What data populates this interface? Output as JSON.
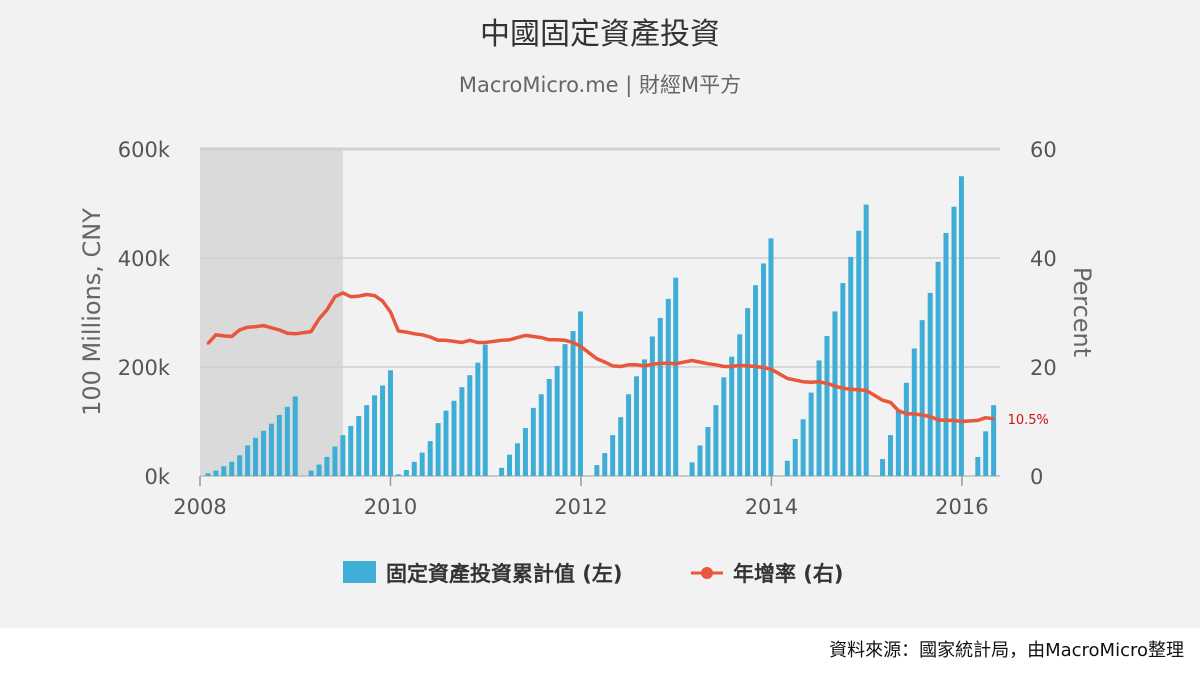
{
  "colors": {
    "panel_bg": "#f2f2f2",
    "recession_shade": "#dadada",
    "grid": "#d0d0d0",
    "bar": "#3eaed6",
    "line": "#e8563c",
    "text": "#555555",
    "axis_text": "#555555",
    "last_label": "#cc1111"
  },
  "source_note": "資料來源：國家統計局，由MacroMicro整理",
  "chart_data": {
    "type": "bar+line",
    "title": "中國固定資產投資",
    "subtitle": "MacroMicro.me | 財經M平方",
    "y_left": {
      "label": "100 Millions, CNY",
      "min": 0,
      "max": 600000,
      "ticks": [
        0,
        200000,
        400000,
        600000
      ],
      "tick_labels": [
        "0k",
        "200k",
        "400k",
        "600k"
      ]
    },
    "y_right": {
      "label": "Percent",
      "min": 0,
      "max": 60,
      "ticks": [
        0,
        20,
        40,
        60
      ],
      "tick_labels": [
        "0",
        "20",
        "40",
        "60"
      ]
    },
    "x": {
      "min": 2008.0,
      "max": 2016.4,
      "ticks": [
        2008,
        2010,
        2012,
        2014,
        2016
      ],
      "tick_labels": [
        "2008",
        "2010",
        "2012",
        "2014",
        "2016"
      ]
    },
    "shaded_ranges": [
      [
        2008.0,
        2009.5
      ]
    ],
    "legend": {
      "position": "bottom",
      "items": [
        {
          "name": "固定資產投資累計值 (左)",
          "kind": "bar"
        },
        {
          "name": "年增率 (右)",
          "kind": "line"
        }
      ]
    },
    "grid": true,
    "series": [
      {
        "name": "固定資產投資累計值 (左)",
        "axis": "left",
        "kind": "bar",
        "data": [
          [
            2008.083,
            5000
          ],
          [
            2008.167,
            10000
          ],
          [
            2008.25,
            18000
          ],
          [
            2008.333,
            26000
          ],
          [
            2008.417,
            38000
          ],
          [
            2008.5,
            56000
          ],
          [
            2008.583,
            70000
          ],
          [
            2008.667,
            83000
          ],
          [
            2008.75,
            96000
          ],
          [
            2008.833,
            112000
          ],
          [
            2008.917,
            127000
          ],
          [
            2009.0,
            146000
          ],
          [
            2009.167,
            10000
          ],
          [
            2009.25,
            21000
          ],
          [
            2009.333,
            35000
          ],
          [
            2009.417,
            54000
          ],
          [
            2009.5,
            75000
          ],
          [
            2009.583,
            92000
          ],
          [
            2009.667,
            110000
          ],
          [
            2009.75,
            130000
          ],
          [
            2009.833,
            148000
          ],
          [
            2009.917,
            166000
          ],
          [
            2010.0,
            194000
          ],
          [
            2010.083,
            3000
          ],
          [
            2010.167,
            11000
          ],
          [
            2010.25,
            26000
          ],
          [
            2010.333,
            43000
          ],
          [
            2010.417,
            64000
          ],
          [
            2010.5,
            97000
          ],
          [
            2010.583,
            120000
          ],
          [
            2010.667,
            138000
          ],
          [
            2010.75,
            163000
          ],
          [
            2010.833,
            185000
          ],
          [
            2010.917,
            208000
          ],
          [
            2010.995,
            241000
          ],
          [
            2011.167,
            15000
          ],
          [
            2011.25,
            39000
          ],
          [
            2011.333,
            60000
          ],
          [
            2011.417,
            88000
          ],
          [
            2011.5,
            125000
          ],
          [
            2011.583,
            150000
          ],
          [
            2011.667,
            178000
          ],
          [
            2011.75,
            202000
          ],
          [
            2011.833,
            242000
          ],
          [
            2011.917,
            266000
          ],
          [
            2011.995,
            302000
          ],
          [
            2012.167,
            20000
          ],
          [
            2012.25,
            42000
          ],
          [
            2012.333,
            75000
          ],
          [
            2012.417,
            108000
          ],
          [
            2012.5,
            150000
          ],
          [
            2012.583,
            183000
          ],
          [
            2012.667,
            214000
          ],
          [
            2012.75,
            256000
          ],
          [
            2012.833,
            290000
          ],
          [
            2012.917,
            325000
          ],
          [
            2012.995,
            364000
          ],
          [
            2013.167,
            25000
          ],
          [
            2013.25,
            56000
          ],
          [
            2013.333,
            90000
          ],
          [
            2013.417,
            130000
          ],
          [
            2013.5,
            181000
          ],
          [
            2013.583,
            219000
          ],
          [
            2013.667,
            260000
          ],
          [
            2013.75,
            308000
          ],
          [
            2013.833,
            350000
          ],
          [
            2013.917,
            390000
          ],
          [
            2013.995,
            436000
          ],
          [
            2014.167,
            28000
          ],
          [
            2014.25,
            68000
          ],
          [
            2014.333,
            104000
          ],
          [
            2014.417,
            153000
          ],
          [
            2014.5,
            212000
          ],
          [
            2014.583,
            257000
          ],
          [
            2014.667,
            302000
          ],
          [
            2014.75,
            354000
          ],
          [
            2014.833,
            402000
          ],
          [
            2014.917,
            450000
          ],
          [
            2014.995,
            498000
          ],
          [
            2015.167,
            31000
          ],
          [
            2015.25,
            75000
          ],
          [
            2015.333,
            120000
          ],
          [
            2015.417,
            171000
          ],
          [
            2015.5,
            234000
          ],
          [
            2015.583,
            286000
          ],
          [
            2015.667,
            336000
          ],
          [
            2015.75,
            393000
          ],
          [
            2015.833,
            446000
          ],
          [
            2015.917,
            494000
          ],
          [
            2015.995,
            550000
          ],
          [
            2016.167,
            35000
          ],
          [
            2016.25,
            82000
          ],
          [
            2016.333,
            130000
          ]
        ]
      },
      {
        "name": "年增率 (右)",
        "axis": "right",
        "kind": "line",
        "last_value_label": "10.5%",
        "data": [
          [
            2008.083,
            24.3
          ],
          [
            2008.167,
            25.9
          ],
          [
            2008.25,
            25.7
          ],
          [
            2008.333,
            25.6
          ],
          [
            2008.417,
            26.8
          ],
          [
            2008.5,
            27.3
          ],
          [
            2008.583,
            27.4
          ],
          [
            2008.667,
            27.6
          ],
          [
            2008.75,
            27.2
          ],
          [
            2008.833,
            26.8
          ],
          [
            2008.917,
            26.2
          ],
          [
            2009.0,
            26.1
          ],
          [
            2009.167,
            26.5
          ],
          [
            2009.25,
            28.8
          ],
          [
            2009.333,
            30.5
          ],
          [
            2009.417,
            32.9
          ],
          [
            2009.5,
            33.6
          ],
          [
            2009.583,
            32.9
          ],
          [
            2009.667,
            33.0
          ],
          [
            2009.75,
            33.3
          ],
          [
            2009.833,
            33.1
          ],
          [
            2009.917,
            32.1
          ],
          [
            2010.0,
            30.1
          ],
          [
            2010.083,
            26.6
          ],
          [
            2010.167,
            26.4
          ],
          [
            2010.25,
            26.1
          ],
          [
            2010.333,
            25.9
          ],
          [
            2010.417,
            25.5
          ],
          [
            2010.5,
            24.9
          ],
          [
            2010.583,
            24.9
          ],
          [
            2010.667,
            24.7
          ],
          [
            2010.75,
            24.5
          ],
          [
            2010.833,
            24.9
          ],
          [
            2010.917,
            24.5
          ],
          [
            2010.995,
            24.5
          ],
          [
            2011.167,
            24.9
          ],
          [
            2011.25,
            25.0
          ],
          [
            2011.333,
            25.4
          ],
          [
            2011.417,
            25.8
          ],
          [
            2011.5,
            25.6
          ],
          [
            2011.583,
            25.4
          ],
          [
            2011.667,
            25.0
          ],
          [
            2011.75,
            25.0
          ],
          [
            2011.833,
            24.9
          ],
          [
            2011.917,
            24.5
          ],
          [
            2011.995,
            23.8
          ],
          [
            2012.167,
            21.5
          ],
          [
            2012.25,
            20.9
          ],
          [
            2012.333,
            20.2
          ],
          [
            2012.417,
            20.1
          ],
          [
            2012.5,
            20.4
          ],
          [
            2012.583,
            20.4
          ],
          [
            2012.667,
            20.2
          ],
          [
            2012.75,
            20.5
          ],
          [
            2012.833,
            20.7
          ],
          [
            2012.917,
            20.7
          ],
          [
            2012.995,
            20.6
          ],
          [
            2013.167,
            21.2
          ],
          [
            2013.25,
            20.9
          ],
          [
            2013.333,
            20.6
          ],
          [
            2013.417,
            20.4
          ],
          [
            2013.5,
            20.1
          ],
          [
            2013.583,
            20.1
          ],
          [
            2013.667,
            20.3
          ],
          [
            2013.75,
            20.2
          ],
          [
            2013.833,
            20.1
          ],
          [
            2013.917,
            19.9
          ],
          [
            2013.995,
            19.6
          ],
          [
            2014.167,
            17.9
          ],
          [
            2014.25,
            17.6
          ],
          [
            2014.333,
            17.3
          ],
          [
            2014.417,
            17.2
          ],
          [
            2014.5,
            17.3
          ],
          [
            2014.583,
            17.0
          ],
          [
            2014.667,
            16.5
          ],
          [
            2014.75,
            16.1
          ],
          [
            2014.833,
            15.9
          ],
          [
            2014.917,
            15.8
          ],
          [
            2014.995,
            15.7
          ],
          [
            2015.167,
            13.9
          ],
          [
            2015.25,
            13.5
          ],
          [
            2015.333,
            12.0
          ],
          [
            2015.417,
            11.4
          ],
          [
            2015.5,
            11.4
          ],
          [
            2015.583,
            11.2
          ],
          [
            2015.667,
            10.9
          ],
          [
            2015.75,
            10.3
          ],
          [
            2015.833,
            10.2
          ],
          [
            2015.917,
            10.2
          ],
          [
            2015.995,
            10.0
          ],
          [
            2016.167,
            10.2
          ],
          [
            2016.25,
            10.7
          ],
          [
            2016.333,
            10.5
          ]
        ]
      }
    ]
  }
}
